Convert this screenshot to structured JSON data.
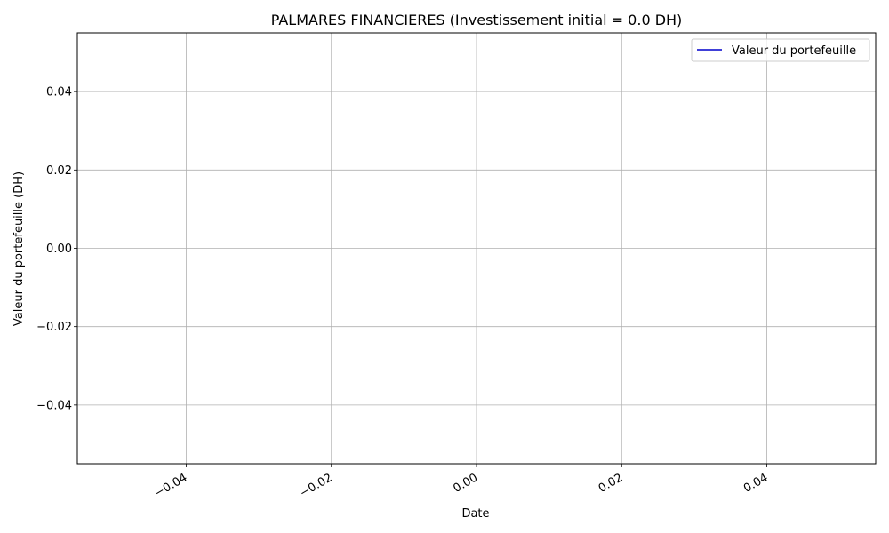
{
  "chart_data": {
    "type": "line",
    "title": "PALMARES FINANCIERES (Investissement initial = 0.0 DH)",
    "xlabel": "Date",
    "ylabel": "Valeur du portefeuille (DH)",
    "xlim": [
      -0.055,
      0.055
    ],
    "ylim": [
      -0.055,
      0.055
    ],
    "x_ticks": [
      -0.04,
      -0.02,
      0.0,
      0.02,
      0.04
    ],
    "x_tick_labels": [
      "−0.04",
      "−0.02",
      "0.00",
      "0.02",
      "0.04"
    ],
    "y_ticks": [
      0.04,
      0.02,
      0.0,
      -0.02,
      -0.04
    ],
    "y_tick_labels": [
      "0.04",
      "0.02",
      "0.00",
      "−0.02",
      "−0.04"
    ],
    "grid": true,
    "legend_position": "top-right",
    "series": [
      {
        "name": "Valeur du portefeuille",
        "color": "#0000cc",
        "x": [],
        "y": []
      }
    ]
  }
}
